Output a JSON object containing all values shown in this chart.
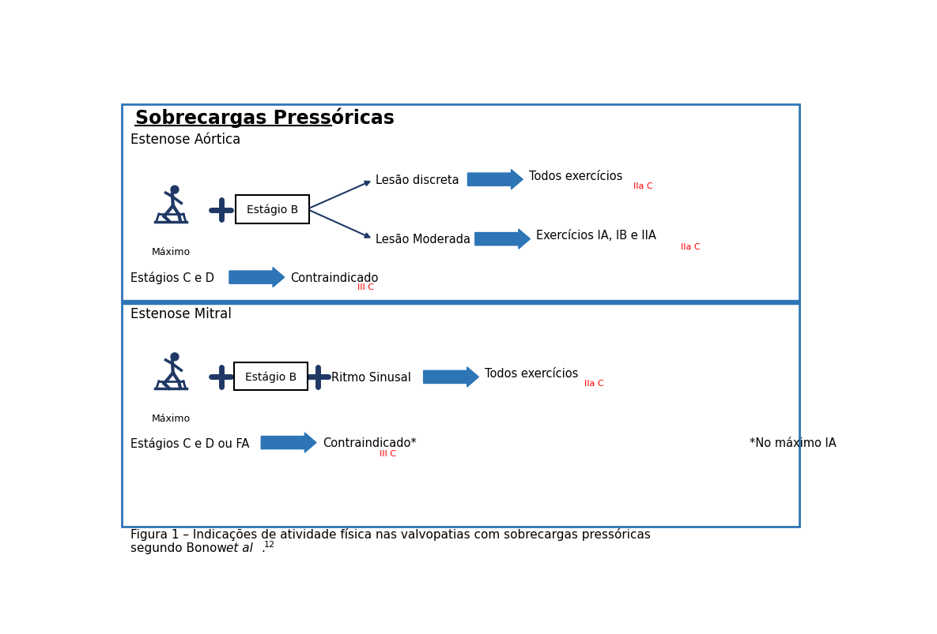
{
  "title": "Sobrecargas Pressóricas",
  "bg_color": "#ffffff",
  "border_color": "#2e75b6",
  "section1_label": "Estenose Aórtica",
  "section2_label": "Estenose Mitral",
  "arrow_color": "#2e75b6",
  "text_color": "#000000",
  "red_color": "#ff0000",
  "dark_blue": "#1f3864",
  "caption_line1": "Figura 1 – Indicações de atividade física nas valvopatias com sobrecargas pressóricas",
  "caption_line2_normal": "segundo Bonow ",
  "caption_line2_italic": "et al",
  "caption_line2_dot": ".",
  "caption_super": "12"
}
